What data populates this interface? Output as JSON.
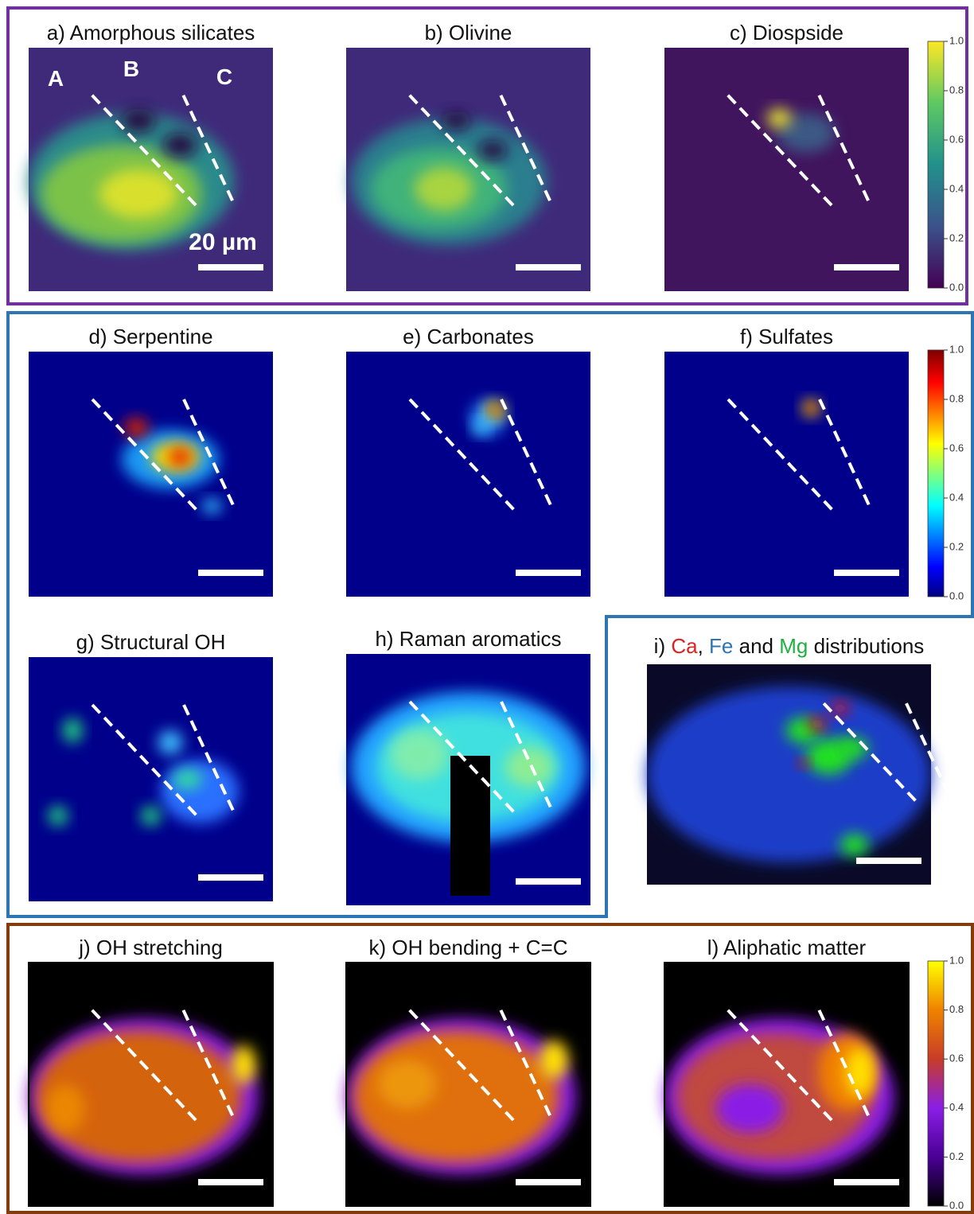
{
  "panels": [
    {
      "title": "a) Amorphous silicates",
      "labels": [
        "A",
        "B",
        "C"
      ],
      "scale": "20 µm"
    },
    {
      "title": "b) Olivine"
    },
    {
      "title": "c) Diospside"
    },
    {
      "title": "d) Serpentine"
    },
    {
      "title": "e) Carbonates"
    },
    {
      "title": "f) Sulfates"
    },
    {
      "title": "g) Structural OH"
    },
    {
      "title": "h) Raman aromatics"
    },
    {
      "title_parts": [
        "i) ",
        "Ca",
        ", ",
        "Fe",
        " and ",
        "Mg",
        " distributions"
      ]
    },
    {
      "title": "j) OH stretching"
    },
    {
      "title": "k) OH bending + C=C"
    },
    {
      "title": "l) Aliphatic matter"
    }
  ],
  "colorbars": [
    {
      "ticks": [
        {
          "value": 0,
          "label": "0.0"
        },
        {
          "value": 0.2,
          "label": "0.2"
        },
        {
          "value": 0.4,
          "label": "0.4"
        },
        {
          "value": 0.6,
          "label": "0.6"
        },
        {
          "value": 0.8,
          "label": "0.8"
        },
        {
          "value": 1,
          "label": "1.0"
        }
      ]
    },
    {
      "ticks": [
        {
          "value": 0,
          "label": "0.0"
        },
        {
          "value": 0.2,
          "label": "0.2"
        },
        {
          "value": 0.4,
          "label": "0.4"
        },
        {
          "value": 0.6,
          "label": "0.6"
        },
        {
          "value": 0.8,
          "label": "0.8"
        },
        {
          "value": 1,
          "label": "1.0"
        }
      ]
    },
    {
      "ticks": [
        {
          "value": 0,
          "label": "0.0"
        },
        {
          "value": 0.2,
          "label": "0.2"
        },
        {
          "value": 0.4,
          "label": "0.4"
        },
        {
          "value": 0.6,
          "label": "0.6"
        },
        {
          "value": 0.8,
          "label": "0.8"
        },
        {
          "value": 1,
          "label": "1.0"
        }
      ]
    }
  ]
}
